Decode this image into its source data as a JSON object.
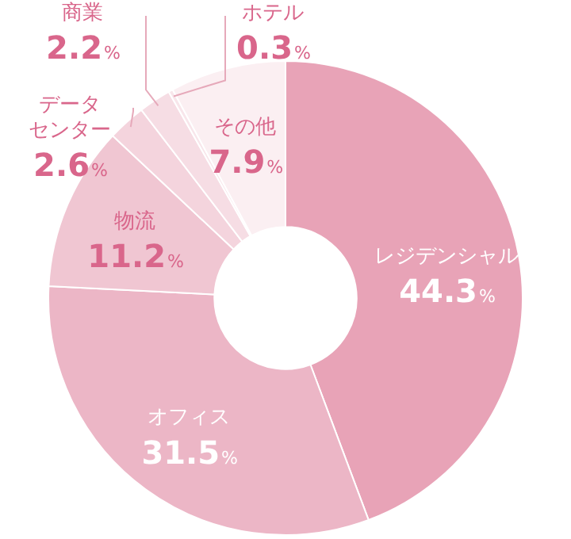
{
  "chart_data": {
    "type": "donut",
    "categories": [
      "レジデンシャル",
      "オフィス",
      "物流",
      "データセンター",
      "商業",
      "ホテル",
      "その他"
    ],
    "values": [
      44.3,
      31.5,
      11.2,
      2.6,
      2.2,
      0.3,
      7.9
    ],
    "value_labels": [
      "44.3%",
      "31.5%",
      "11.2%",
      "2.6%",
      "2.2%",
      "0.3%",
      "7.9%"
    ],
    "colors": [
      "#e8a3b7",
      "#ecb6c6",
      "#f0c6d2",
      "#f4d4dd",
      "#f6dde4",
      "#f8e6eb",
      "#fbeff2"
    ],
    "legend": false
  }
}
